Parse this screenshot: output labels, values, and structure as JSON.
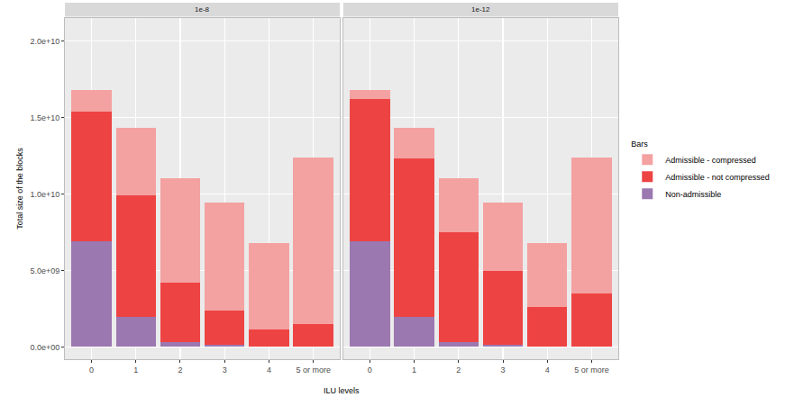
{
  "chart_data": [
    {
      "type": "bar",
      "title": "1e-8",
      "stacked": true,
      "grid": true,
      "legend": "right",
      "legend_title": "Bars",
      "y_label": "Total size of the blocks",
      "x_label": "ILU levels",
      "categories": [
        "0",
        "1",
        "2",
        "3",
        "4",
        "5 or more"
      ],
      "series": [
        {
          "name": "Non-admissible",
          "color": "#9b78b0",
          "values": [
            6900000000,
            1950000000,
            300000000,
            150000000,
            0,
            0
          ]
        },
        {
          "name": "Admissible - not compressed",
          "color": "#ee4343",
          "values": [
            8500000000,
            7950000000,
            3900000000,
            2200000000,
            1150000000,
            1500000000
          ]
        },
        {
          "name": "Admissible - compressed",
          "color": "#f4a1a1",
          "values": [
            1400000000,
            4400000000,
            6800000000,
            7100000000,
            5650000000,
            10900000000
          ]
        }
      ],
      "ylim": [
        -800000000,
        21500000000
      ],
      "yticks": [
        {
          "value": 0,
          "label": "0.0e+00"
        },
        {
          "value": 5000000000,
          "label": "5.0e+09"
        },
        {
          "value": 10000000000,
          "label": "1.0e+10"
        },
        {
          "value": 15000000000,
          "label": "1.5e+10"
        },
        {
          "value": 20000000000,
          "label": "2.0e+10"
        }
      ]
    },
    {
      "type": "bar",
      "title": "1e-12",
      "stacked": true,
      "grid": true,
      "tick_labels": "x",
      "categories": [
        "0",
        "1",
        "2",
        "3",
        "4",
        "5 or more"
      ],
      "series": [
        {
          "name": "Non-admissible",
          "color": "#9b78b0",
          "values": [
            6900000000,
            1950000000,
            300000000,
            150000000,
            0,
            0
          ]
        },
        {
          "name": "Admissible - not compressed",
          "color": "#ee4343",
          "values": [
            9300000000,
            10350000000,
            7200000000,
            4800000000,
            2600000000,
            3500000000
          ]
        },
        {
          "name": "Admissible - compressed",
          "color": "#f4a1a1",
          "values": [
            600000000,
            2000000000,
            3500000000,
            4500000000,
            4200000000,
            8900000000
          ]
        }
      ],
      "ylim": [
        -800000000,
        21500000000
      ],
      "yticks": [
        {
          "value": 0,
          "label": "0.0e+00"
        },
        {
          "value": 5000000000,
          "label": "5.0e+09"
        },
        {
          "value": 10000000000,
          "label": "1.0e+10"
        },
        {
          "value": 15000000000,
          "label": "1.5e+10"
        },
        {
          "value": 20000000000,
          "label": "2.0e+10"
        }
      ]
    }
  ]
}
